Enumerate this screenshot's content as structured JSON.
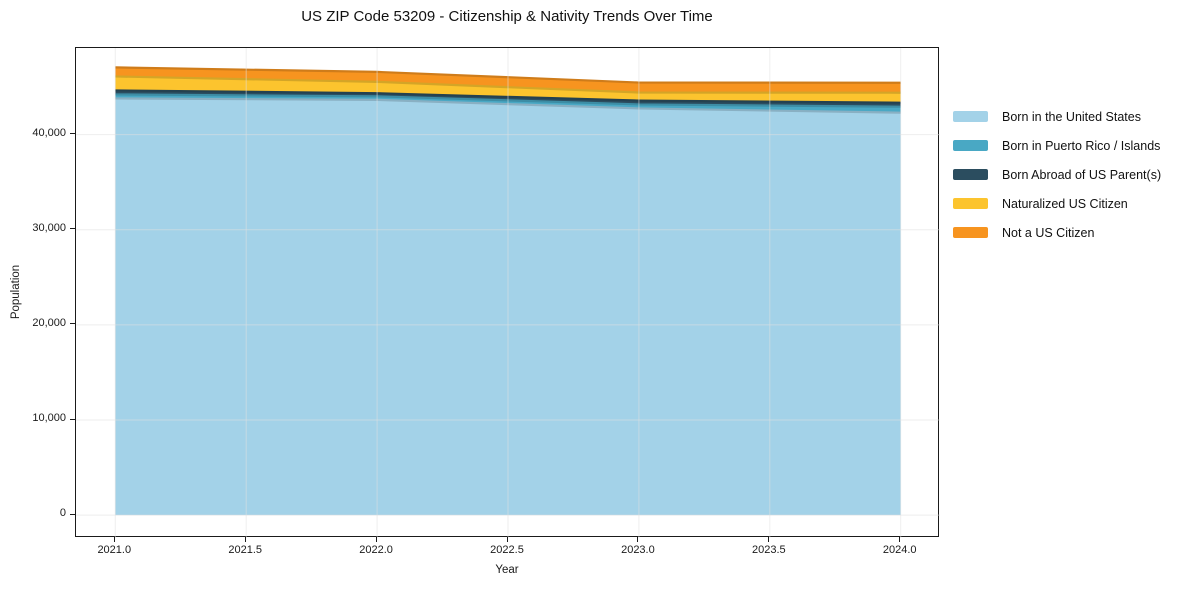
{
  "background": "#ffffff",
  "chart_data": {
    "type": "area",
    "stacked": true,
    "title": "US ZIP Code 53209 - Citizenship & Nativity Trends Over Time",
    "xlabel": "Year",
    "ylabel": "Population",
    "x": [
      2021,
      2022,
      2023,
      2024
    ],
    "series": [
      {
        "name": "Born in the United States",
        "color": "#a3d2e8",
        "values": [
          43800,
          43650,
          42750,
          42300
        ]
      },
      {
        "name": "Born in Puerto Rico / Islands",
        "color": "#49a8c4",
        "values": [
          420,
          370,
          420,
          630
        ]
      },
      {
        "name": "Born Abroad of US Parent(s)",
        "color": "#2b4d5f",
        "values": [
          420,
          330,
          400,
          420
        ]
      },
      {
        "name": "Naturalized US Citizen",
        "color": "#fcc42e",
        "values": [
          1470,
          1190,
          850,
          1050
        ]
      },
      {
        "name": "Not a US Citizen",
        "color": "#f7941f",
        "values": [
          950,
          1050,
          1050,
          1050
        ]
      }
    ],
    "xlim": [
      2020.85,
      2024.15
    ],
    "ylim": [
      -2400,
      49100
    ],
    "xticks": [
      {
        "label": "2021.0",
        "value": 2021.0
      },
      {
        "label": "2021.5",
        "value": 2021.5
      },
      {
        "label": "2022.0",
        "value": 2022.0
      },
      {
        "label": "2022.5",
        "value": 2022.5
      },
      {
        "label": "2023.0",
        "value": 2023.0
      },
      {
        "label": "2023.5",
        "value": 2023.5
      },
      {
        "label": "2024.0",
        "value": 2024.0
      }
    ],
    "yticks": [
      {
        "label": "0",
        "value": 0
      },
      {
        "label": "10,000",
        "value": 10000
      },
      {
        "label": "20,000",
        "value": 20000
      },
      {
        "label": "30,000",
        "value": 30000
      },
      {
        "label": "40,000",
        "value": 40000
      }
    ],
    "grid": true,
    "grid_color": "#e0e0e0",
    "legend_position": "right"
  }
}
